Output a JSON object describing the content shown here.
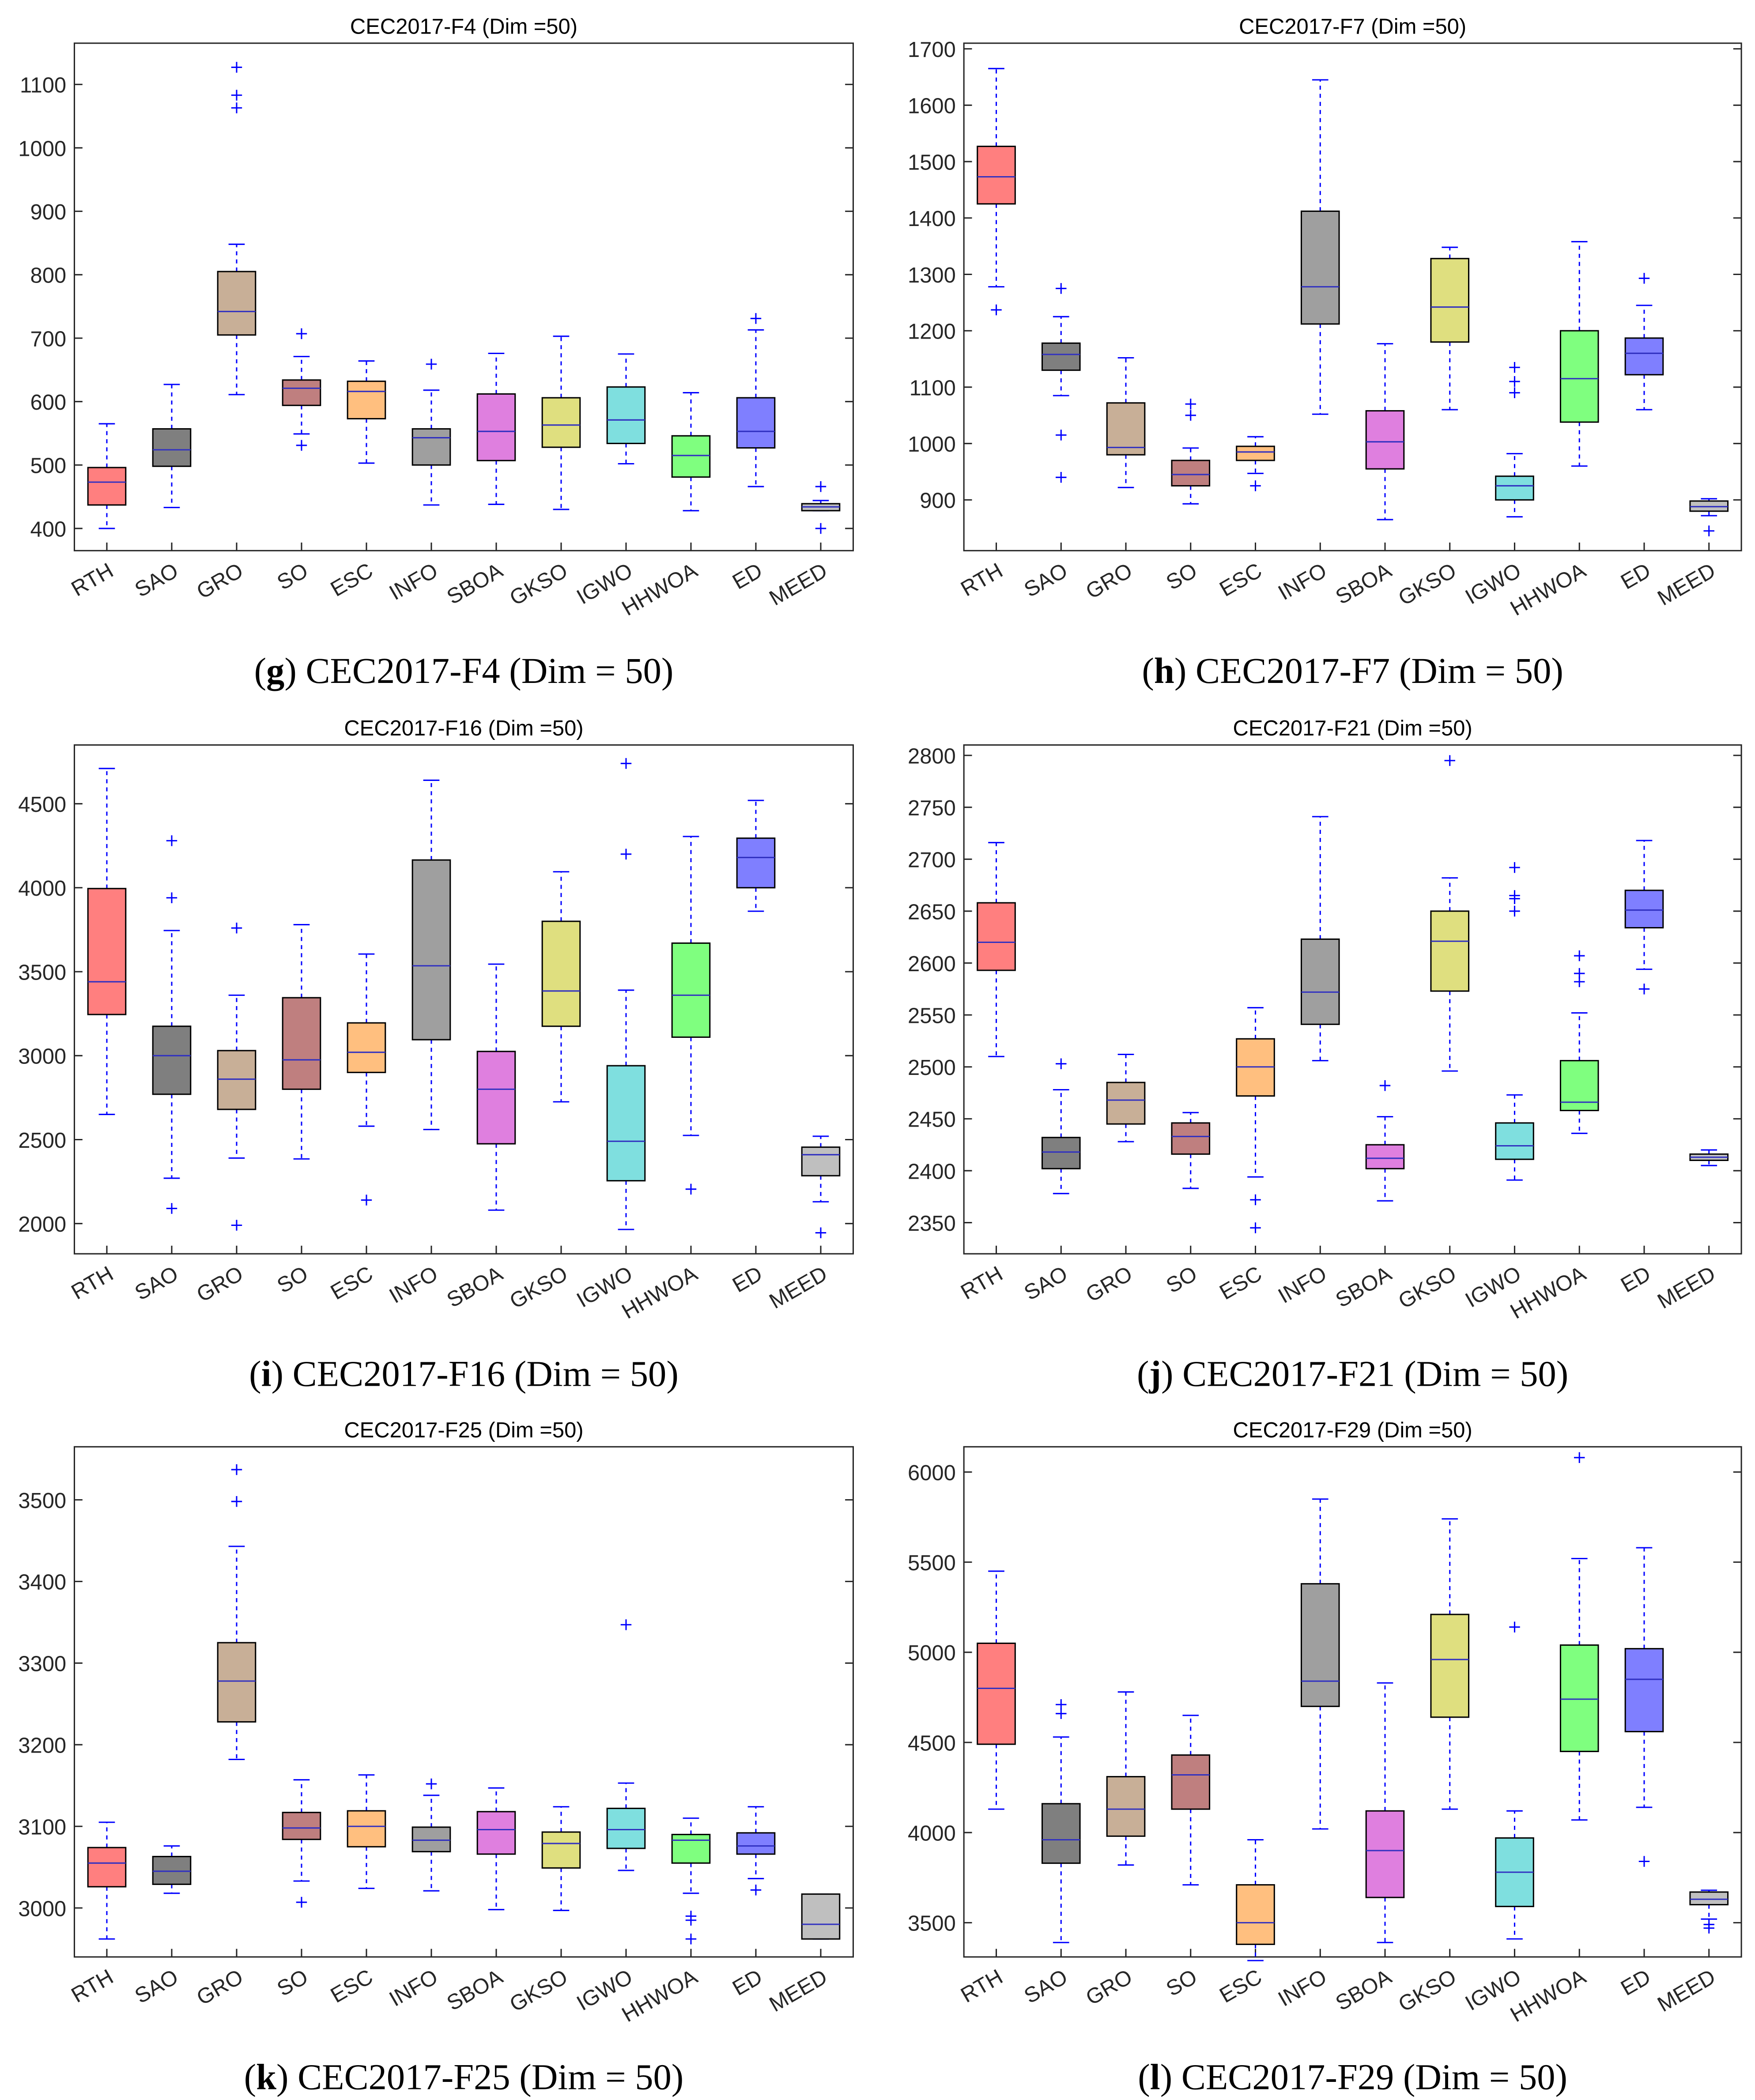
{
  "categories": [
    "RTH",
    "SAO",
    "GRO",
    "SO",
    "ESC",
    "INFO",
    "SBOA",
    "GKSO",
    "IGWO",
    "HHWOA",
    "ED",
    "MEED"
  ],
  "box_colors": [
    "#ff7f7f",
    "#7f7f7f",
    "#c8af97",
    "#bf7f7f",
    "#ffbf7f",
    "#9f9f9f",
    "#df7fdf",
    "#dfdf7f",
    "#7fdfdf",
    "#7fff7f",
    "#7f7fff",
    "#bfbfbf"
  ],
  "whisker_color": "#0000ff",
  "chart_data": [
    {
      "type": "box",
      "title": "CEC2017-F4 (Dim =50)",
      "caption_label": "g",
      "caption_text": "CEC2017-F4 (Dim = 50)",
      "ylim": [
        365,
        1165
      ],
      "yticks": [
        400,
        500,
        600,
        700,
        800,
        900,
        1000,
        1100
      ],
      "boxes": [
        {
          "min": 400,
          "q1": 437,
          "median": 473,
          "q3": 496,
          "max": 565,
          "outliers": []
        },
        {
          "min": 433,
          "q1": 498,
          "median": 524,
          "q3": 557,
          "max": 627,
          "outliers": []
        },
        {
          "min": 611,
          "q1": 705,
          "median": 742,
          "q3": 805,
          "max": 848,
          "outliers": [
            1063,
            1083,
            1127
          ]
        },
        {
          "min": 549,
          "q1": 594,
          "median": 621,
          "q3": 634,
          "max": 671,
          "outliers": [
            707,
            531
          ]
        },
        {
          "min": 503,
          "q1": 573,
          "median": 616,
          "q3": 632,
          "max": 664,
          "outliers": []
        },
        {
          "min": 437,
          "q1": 500,
          "median": 543,
          "q3": 557,
          "max": 618,
          "outliers": [
            659
          ]
        },
        {
          "min": 438,
          "q1": 507,
          "median": 553,
          "q3": 612,
          "max": 676,
          "outliers": []
        },
        {
          "min": 430,
          "q1": 528,
          "median": 563,
          "q3": 606,
          "max": 703,
          "outliers": []
        },
        {
          "min": 502,
          "q1": 534,
          "median": 571,
          "q3": 623,
          "max": 675,
          "outliers": []
        },
        {
          "min": 428,
          "q1": 481,
          "median": 515,
          "q3": 546,
          "max": 614,
          "outliers": []
        },
        {
          "min": 466,
          "q1": 527,
          "median": 553,
          "q3": 606,
          "max": 713,
          "outliers": [
            731
          ]
        },
        {
          "min": 428,
          "q1": 428,
          "median": 434,
          "q3": 439,
          "max": 444,
          "outliers": [
            466,
            400
          ]
        }
      ]
    },
    {
      "type": "box",
      "title": "CEC2017-F7 (Dim =50)",
      "caption_label": "h",
      "caption_text": "CEC2017-F7 (Dim = 50)",
      "ylim": [
        810,
        1710
      ],
      "yticks": [
        900,
        1000,
        1100,
        1200,
        1300,
        1400,
        1500,
        1600,
        1700
      ],
      "boxes": [
        {
          "min": 1278,
          "q1": 1425,
          "median": 1473,
          "q3": 1527,
          "max": 1665,
          "outliers": [
            1237
          ]
        },
        {
          "min": 1085,
          "q1": 1130,
          "median": 1158,
          "q3": 1178,
          "max": 1225,
          "outliers": [
            1275,
            1015,
            940
          ]
        },
        {
          "min": 922,
          "q1": 980,
          "median": 993,
          "q3": 1072,
          "max": 1152,
          "outliers": []
        },
        {
          "min": 893,
          "q1": 925,
          "median": 945,
          "q3": 970,
          "max": 992,
          "outliers": [
            1050,
            1070
          ]
        },
        {
          "min": 947,
          "q1": 970,
          "median": 985,
          "q3": 995,
          "max": 1012,
          "outliers": [
            925
          ]
        },
        {
          "min": 1052,
          "q1": 1212,
          "median": 1278,
          "q3": 1412,
          "max": 1645,
          "outliers": []
        },
        {
          "min": 865,
          "q1": 955,
          "median": 1003,
          "q3": 1058,
          "max": 1177,
          "outliers": []
        },
        {
          "min": 1060,
          "q1": 1180,
          "median": 1242,
          "q3": 1328,
          "max": 1348,
          "outliers": []
        },
        {
          "min": 870,
          "q1": 900,
          "median": 925,
          "q3": 942,
          "max": 982,
          "outliers": [
            1090,
            1110,
            1135
          ]
        },
        {
          "min": 960,
          "q1": 1038,
          "median": 1115,
          "q3": 1200,
          "max": 1358,
          "outliers": []
        },
        {
          "min": 1060,
          "q1": 1122,
          "median": 1160,
          "q3": 1187,
          "max": 1245,
          "outliers": [
            1293
          ]
        },
        {
          "min": 872,
          "q1": 880,
          "median": 888,
          "q3": 898,
          "max": 902,
          "outliers": [
            845
          ]
        }
      ]
    },
    {
      "type": "box",
      "title": "CEC2017-F16 (Dim =50)",
      "caption_label": "i",
      "caption_text": "CEC2017-F16 (Dim = 50)",
      "ylim": [
        1820,
        4850
      ],
      "yticks": [
        2000,
        2500,
        3000,
        3500,
        4000,
        4500
      ],
      "boxes": [
        {
          "min": 2650,
          "q1": 3245,
          "median": 3440,
          "q3": 3995,
          "max": 4710,
          "outliers": []
        },
        {
          "min": 2270,
          "q1": 2770,
          "median": 3000,
          "q3": 3175,
          "max": 3745,
          "outliers": [
            4280,
            3940,
            2090
          ]
        },
        {
          "min": 2390,
          "q1": 2680,
          "median": 2860,
          "q3": 3030,
          "max": 3360,
          "outliers": [
            3760,
            1990
          ]
        },
        {
          "min": 2385,
          "q1": 2800,
          "median": 2975,
          "q3": 3345,
          "max": 3780,
          "outliers": []
        },
        {
          "min": 2580,
          "q1": 2900,
          "median": 3020,
          "q3": 3195,
          "max": 3605,
          "outliers": [
            2140
          ]
        },
        {
          "min": 2560,
          "q1": 3095,
          "median": 3535,
          "q3": 4165,
          "max": 4640,
          "outliers": []
        },
        {
          "min": 2080,
          "q1": 2475,
          "median": 2800,
          "q3": 3025,
          "max": 3545,
          "outliers": []
        },
        {
          "min": 2725,
          "q1": 3175,
          "median": 3385,
          "q3": 3800,
          "max": 4095,
          "outliers": []
        },
        {
          "min": 1965,
          "q1": 2255,
          "median": 2490,
          "q3": 2940,
          "max": 3390,
          "outliers": [
            4200,
            4740
          ]
        },
        {
          "min": 2525,
          "q1": 3110,
          "median": 3360,
          "q3": 3670,
          "max": 4305,
          "outliers": [
            2205
          ]
        },
        {
          "min": 3860,
          "q1": 4000,
          "median": 4180,
          "q3": 4295,
          "max": 4520,
          "outliers": []
        },
        {
          "min": 2130,
          "q1": 2285,
          "median": 2410,
          "q3": 2455,
          "max": 2520,
          "outliers": [
            1945
          ]
        }
      ]
    },
    {
      "type": "box",
      "title": "CEC2017-F21 (Dim =50)",
      "caption_label": "j",
      "caption_text": "CEC2017-F21 (Dim = 50)",
      "ylim": [
        2320,
        2810
      ],
      "yticks": [
        2350,
        2400,
        2450,
        2500,
        2550,
        2600,
        2650,
        2700,
        2750,
        2800
      ],
      "boxes": [
        {
          "min": 2510,
          "q1": 2593,
          "median": 2620,
          "q3": 2658,
          "max": 2716,
          "outliers": []
        },
        {
          "min": 2378,
          "q1": 2402,
          "median": 2418,
          "q3": 2432,
          "max": 2478,
          "outliers": [
            2503
          ]
        },
        {
          "min": 2428,
          "q1": 2445,
          "median": 2468,
          "q3": 2485,
          "max": 2512,
          "outliers": []
        },
        {
          "min": 2383,
          "q1": 2416,
          "median": 2433,
          "q3": 2446,
          "max": 2456,
          "outliers": []
        },
        {
          "min": 2394,
          "q1": 2472,
          "median": 2500,
          "q3": 2527,
          "max": 2557,
          "outliers": [
            2372,
            2345
          ]
        },
        {
          "min": 2506,
          "q1": 2541,
          "median": 2572,
          "q3": 2623,
          "max": 2741,
          "outliers": []
        },
        {
          "min": 2371,
          "q1": 2402,
          "median": 2412,
          "q3": 2425,
          "max": 2452,
          "outliers": [
            2482
          ]
        },
        {
          "min": 2496,
          "q1": 2573,
          "median": 2621,
          "q3": 2650,
          "max": 2682,
          "outliers": [
            2795
          ]
        },
        {
          "min": 2391,
          "q1": 2411,
          "median": 2424,
          "q3": 2446,
          "max": 2473,
          "outliers": [
            2650,
            2662,
            2665,
            2692
          ]
        },
        {
          "min": 2436,
          "q1": 2458,
          "median": 2466,
          "q3": 2506,
          "max": 2552,
          "outliers": [
            2582,
            2590,
            2607
          ]
        },
        {
          "min": 2594,
          "q1": 2634,
          "median": 2651,
          "q3": 2670,
          "max": 2718,
          "outliers": [
            2575
          ]
        },
        {
          "min": 2405,
          "q1": 2410,
          "median": 2413,
          "q3": 2416,
          "max": 2420,
          "outliers": []
        }
      ]
    },
    {
      "type": "box",
      "title": "CEC2017-F25 (Dim =50)",
      "caption_label": "k",
      "caption_text": "CEC2017-F25 (Dim = 50)",
      "ylim": [
        2940,
        3565
      ],
      "yticks": [
        3000,
        3100,
        3200,
        3300,
        3400,
        3500
      ],
      "boxes": [
        {
          "min": 2962,
          "q1": 3026,
          "median": 3055,
          "q3": 3074,
          "max": 3105,
          "outliers": []
        },
        {
          "min": 3018,
          "q1": 3029,
          "median": 3045,
          "q3": 3063,
          "max": 3076,
          "outliers": []
        },
        {
          "min": 3182,
          "q1": 3228,
          "median": 3278,
          "q3": 3325,
          "max": 3443,
          "outliers": [
            3498,
            3537
          ]
        },
        {
          "min": 3033,
          "q1": 3084,
          "median": 3098,
          "q3": 3117,
          "max": 3157,
          "outliers": [
            3007
          ]
        },
        {
          "min": 3024,
          "q1": 3075,
          "median": 3100,
          "q3": 3119,
          "max": 3163,
          "outliers": []
        },
        {
          "min": 3021,
          "q1": 3069,
          "median": 3083,
          "q3": 3099,
          "max": 3138,
          "outliers": [
            3152
          ]
        },
        {
          "min": 2998,
          "q1": 3066,
          "median": 3096,
          "q3": 3118,
          "max": 3147,
          "outliers": []
        },
        {
          "min": 2997,
          "q1": 3049,
          "median": 3079,
          "q3": 3093,
          "max": 3124,
          "outliers": []
        },
        {
          "min": 3046,
          "q1": 3073,
          "median": 3096,
          "q3": 3122,
          "max": 3153,
          "outliers": [
            3347
          ]
        },
        {
          "min": 3018,
          "q1": 3055,
          "median": 3083,
          "q3": 3090,
          "max": 3110,
          "outliers": [
            2990,
            2985,
            2962
          ]
        },
        {
          "min": 3036,
          "q1": 3066,
          "median": 3076,
          "q3": 3092,
          "max": 3124,
          "outliers": [
            3022
          ]
        },
        {
          "min": 2962,
          "q1": 2962,
          "median": 2980,
          "q3": 3017,
          "max": 3017,
          "outliers": []
        }
      ]
    },
    {
      "type": "box",
      "title": "CEC2017-F29 (Dim =50)",
      "caption_label": "l",
      "caption_text": "CEC2017-F29 (Dim = 50)",
      "ylim": [
        3310,
        6140
      ],
      "yticks": [
        3500,
        4000,
        4500,
        5000,
        5500,
        6000
      ],
      "boxes": [
        {
          "min": 4130,
          "q1": 4490,
          "median": 4800,
          "q3": 5050,
          "max": 5450,
          "outliers": []
        },
        {
          "min": 3390,
          "q1": 3830,
          "median": 3960,
          "q3": 4160,
          "max": 4530,
          "outliers": [
            4660,
            4710
          ]
        },
        {
          "min": 3820,
          "q1": 3980,
          "median": 4130,
          "q3": 4310,
          "max": 4780,
          "outliers": []
        },
        {
          "min": 3710,
          "q1": 4130,
          "median": 4320,
          "q3": 4430,
          "max": 4650,
          "outliers": []
        },
        {
          "min": 3290,
          "q1": 3380,
          "median": 3500,
          "q3": 3710,
          "max": 3960,
          "outliers": []
        },
        {
          "min": 4020,
          "q1": 4700,
          "median": 4840,
          "q3": 5380,
          "max": 5850,
          "outliers": []
        },
        {
          "min": 3390,
          "q1": 3640,
          "median": 3900,
          "q3": 4120,
          "max": 4830,
          "outliers": []
        },
        {
          "min": 4130,
          "q1": 4640,
          "median": 4960,
          "q3": 5210,
          "max": 5740,
          "outliers": []
        },
        {
          "min": 3410,
          "q1": 3590,
          "median": 3780,
          "q3": 3970,
          "max": 4120,
          "outliers": [
            5140
          ]
        },
        {
          "min": 4070,
          "q1": 4450,
          "median": 4740,
          "q3": 5040,
          "max": 5520,
          "outliers": [
            6080
          ]
        },
        {
          "min": 4140,
          "q1": 4560,
          "median": 4850,
          "q3": 5020,
          "max": 5580,
          "outliers": [
            3840
          ]
        },
        {
          "min": 3520,
          "q1": 3600,
          "median": 3630,
          "q3": 3670,
          "max": 3680,
          "outliers": [
            3490,
            3470
          ]
        }
      ]
    }
  ]
}
